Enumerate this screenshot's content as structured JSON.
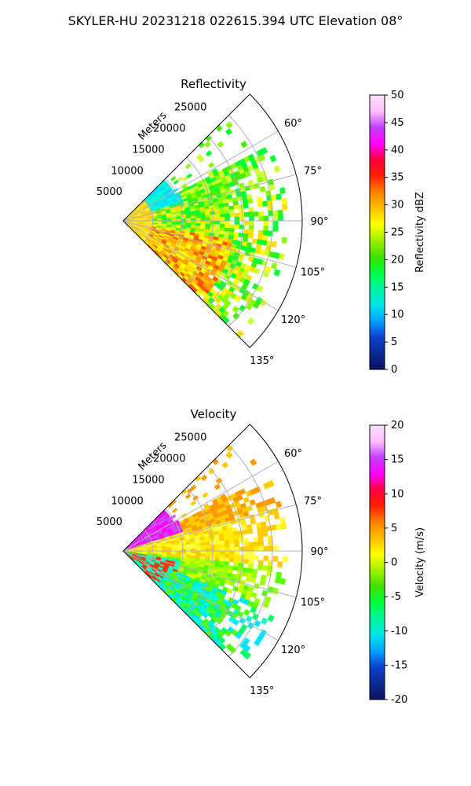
{
  "figure": {
    "title": "SKYLER-HU  20231218  022615.394 UTC Elevation 08°"
  },
  "colorbar_ramp": [
    "#0a1060",
    "#0a2a90",
    "#1040d0",
    "#00a0ff",
    "#00e6e6",
    "#00f5a0",
    "#00ff40",
    "#40e000",
    "#a0f000",
    "#ffff00",
    "#ffc000",
    "#ff8000",
    "#ff2000",
    "#ff0040",
    "#ff00ff",
    "#c040ff",
    "#ffc0ff",
    "#ffe0ff"
  ],
  "chart_data": [
    {
      "type": "heatmap",
      "subtype": "polar-sector (PPI)",
      "title": "Reflectivity",
      "radial_label": "Meters",
      "radial_ticks": [
        "5000",
        "10000",
        "15000",
        "20000",
        "25000"
      ],
      "radial_range": [
        0,
        30000
      ],
      "angular_ticks": [
        "60°",
        "75°",
        "90°",
        "105°",
        "120°",
        "135°"
      ],
      "angular_range_deg": [
        45,
        135
      ],
      "grid": true,
      "colorbar": {
        "label": "Reflectivity dBZ",
        "min": 0,
        "max": 50,
        "ticks": [
          "0",
          "5",
          "10",
          "15",
          "20",
          "25",
          "30",
          "35",
          "40",
          "45",
          "50"
        ]
      }
    },
    {
      "type": "heatmap",
      "subtype": "polar-sector (PPI)",
      "title": "Velocity",
      "radial_label": "Meters",
      "radial_ticks": [
        "5000",
        "10000",
        "15000",
        "20000",
        "25000"
      ],
      "radial_range": [
        0,
        30000
      ],
      "angular_ticks": [
        "60°",
        "75°",
        "90°",
        "105°",
        "120°",
        "135°"
      ],
      "angular_range_deg": [
        45,
        135
      ],
      "grid": true,
      "colorbar": {
        "label": "Velocity (m/s)",
        "min": -20,
        "max": 20,
        "ticks": [
          "-20",
          "-15",
          "-10",
          "-5",
          "0",
          "5",
          "10",
          "15",
          "20"
        ]
      }
    }
  ]
}
